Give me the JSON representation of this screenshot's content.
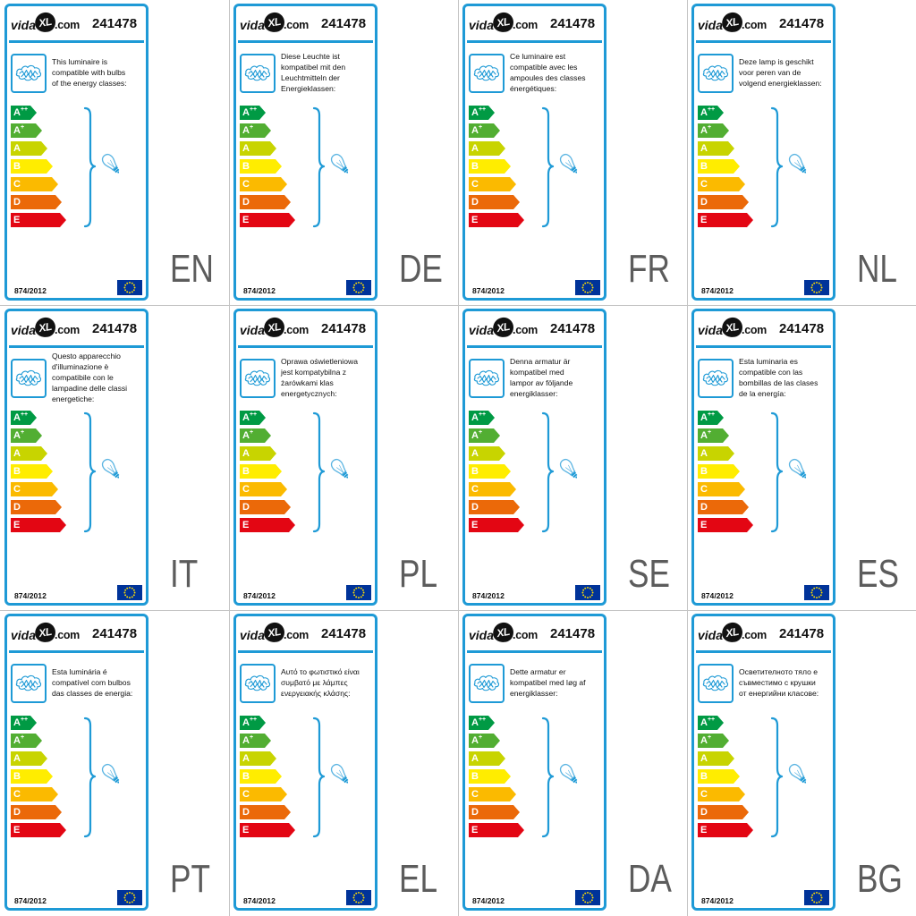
{
  "brand": {
    "logo_pre": "vida",
    "logo_mark": "XL",
    "logo_post": ".com"
  },
  "product_number": "241478",
  "regulation": "874/2012",
  "energy_classes": [
    {
      "letter": "A",
      "sup": "++",
      "color": "#009a44"
    },
    {
      "letter": "A",
      "sup": "+",
      "color": "#52ae32"
    },
    {
      "letter": "A",
      "color": "#c8d400"
    },
    {
      "letter": "B",
      "color": "#ffed00"
    },
    {
      "letter": "C",
      "color": "#fbba00"
    },
    {
      "letter": "D",
      "color": "#eb6909"
    },
    {
      "letter": "E",
      "color": "#e30613"
    }
  ],
  "icons": {
    "luminaire": "chandelier-icon",
    "bulb": "bulb-icon",
    "brace": "brace-icon",
    "flag": "eu-flag-icon"
  },
  "colors": {
    "frame": "#1e9ad6",
    "bulb": "#5ab4e2",
    "text": "#111111",
    "class_letter": "#ffffff",
    "language_code": "#5c5c5c",
    "eu_flag": "#003399",
    "eu_stars": "#ffdd00",
    "grid_line": "#c4c4c4"
  },
  "labels": [
    {
      "lang": "EN",
      "text": [
        "This luminaire is",
        "compatible with bulbs",
        "of the energy classes:"
      ]
    },
    {
      "lang": "DE",
      "text": [
        "Diese Leuchte ist",
        "kompatibel mit den",
        "Leuchtmitteln der",
        "Energieklassen:"
      ]
    },
    {
      "lang": "FR",
      "text": [
        "Ce luminaire est",
        "compatible avec les",
        "ampoules des classes",
        "énergétiques:"
      ]
    },
    {
      "lang": "NL",
      "text": [
        "Deze lamp is geschikt",
        "voor peren van de",
        "volgend energieklassen:"
      ]
    },
    {
      "lang": "IT",
      "text": [
        "Questo apparecchio",
        "d'illuminazione è",
        "compatibile con le",
        "lampadine delle classi",
        "energetiche:"
      ]
    },
    {
      "lang": "PL",
      "text": [
        "Oprawa oświetleniowa",
        "jest kompatybilna z",
        "żarówkami klas",
        "energetycznych:"
      ]
    },
    {
      "lang": "SE",
      "text": [
        "Denna armatur är",
        "kompatibel med",
        "lampor av följande",
        "energiklasser:"
      ]
    },
    {
      "lang": "ES",
      "text": [
        "Esta luminaria es",
        "compatible con las",
        "bombillas de las clases",
        "de la energía:"
      ]
    },
    {
      "lang": "PT",
      "text": [
        "Esta luminária é",
        "compatível com bulbos",
        "das classes de energia:"
      ]
    },
    {
      "lang": "EL",
      "text": [
        "Αυτό το φωτιστικό είναι",
        "συμβατό με λάμπες",
        "ενεργειακής κλάσης:"
      ]
    },
    {
      "lang": "DA",
      "text": [
        "Dette armatur er",
        "kompatibel med løg af",
        "energiklasser:"
      ]
    },
    {
      "lang": "BG",
      "text": [
        "Осветителното тяло е",
        "съвместимо с крушки",
        "от енергийни класове:"
      ]
    }
  ]
}
